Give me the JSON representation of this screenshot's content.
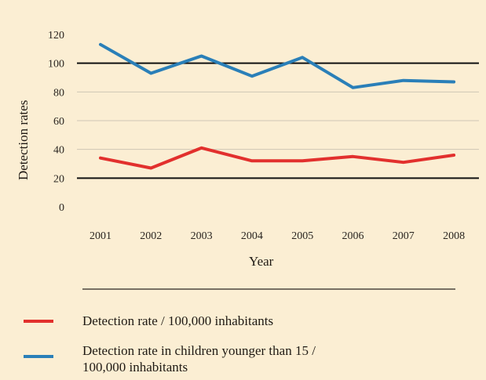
{
  "chart_data": {
    "type": "line",
    "xlabel": "Year",
    "ylabel": "Detection rates",
    "ylim": [
      0,
      120
    ],
    "yticks": [
      "120",
      "100",
      "80",
      "60",
      "40",
      "20",
      "0"
    ],
    "categories": [
      "2001",
      "2002",
      "2003",
      "2004",
      "2005",
      "2006",
      "2007",
      "2008"
    ],
    "series": [
      {
        "name": "Detection rate in children younger than 15 / 100,000 inhabitants",
        "color": "#2a7fb8",
        "values": [
          113,
          93,
          105,
          91,
          104,
          83,
          88,
          87
        ]
      },
      {
        "name": "Detection rate / 100,000 inhabitants",
        "color": "#e2302d",
        "values": [
          34,
          27,
          41,
          32,
          32,
          35,
          31,
          36
        ]
      }
    ],
    "reference_lines": [
      100,
      20
    ],
    "grid": true,
    "legend_position": "bottom"
  },
  "legend": {
    "red_label": "Detection rate / 100,000 inhabitants",
    "blue_label_line1": "Detection rate in children younger than 15 /",
    "blue_label_line2": "100,000 inhabitants"
  },
  "colors": {
    "background": "#fbeed3",
    "gridline": "#cfc6b4",
    "reference_line": "#111111"
  }
}
